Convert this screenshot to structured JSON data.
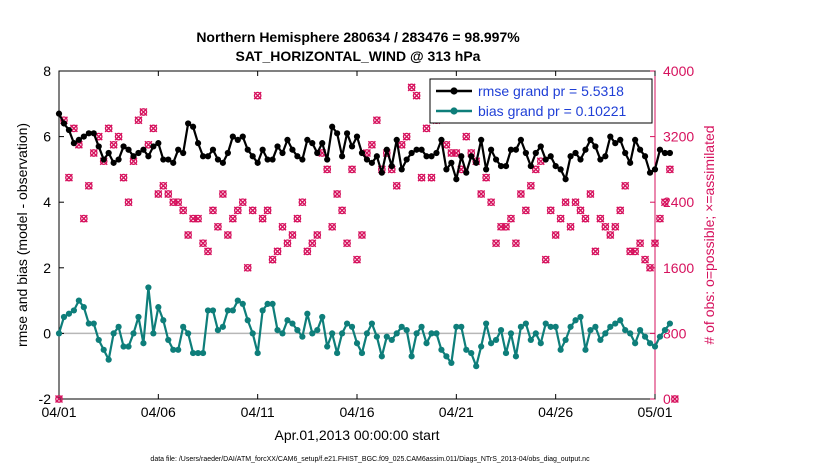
{
  "chart_data": {
    "type": "line",
    "title_line1": "Northern Hemisphere 280634 / 283476 = 98.997%",
    "title_line2": "SAT_HORIZONTAL_WIND @ 313 hPa",
    "xlabel": "Apr.01,2013 00:00:00 start",
    "ylabel_left": "rmse and bias (model - observation)",
    "ylabel_right": "# of obs: o=possible; ×=assimilated",
    "footnote": "data file: /Users/raeder/DAI/ATM_forcXX/CAM6_setup/f.e21.FHIST_BGC.f09_025.CAM6assim.011/Diags_NTrS_2013-04/obs_diag_output.nc",
    "xlim": [
      0,
      30
    ],
    "ylim_left": [
      -2,
      8
    ],
    "ylim_right": [
      0,
      4000
    ],
    "xticks": [
      {
        "value": 0,
        "label": "04/01"
      },
      {
        "value": 5,
        "label": "04/06"
      },
      {
        "value": 10,
        "label": "04/11"
      },
      {
        "value": 15,
        "label": "04/16"
      },
      {
        "value": 20,
        "label": "04/21"
      },
      {
        "value": 25,
        "label": "04/26"
      },
      {
        "value": 30,
        "label": "05/01"
      }
    ],
    "yticks_left": [
      {
        "value": -2,
        "label": "-2"
      },
      {
        "value": 0,
        "label": "0"
      },
      {
        "value": 2,
        "label": "2"
      },
      {
        "value": 4,
        "label": "4"
      },
      {
        "value": 6,
        "label": "6"
      },
      {
        "value": 8,
        "label": "8"
      }
    ],
    "yticks_right": [
      {
        "value": 0,
        "label": "0"
      },
      {
        "value": 800,
        "label": "800"
      },
      {
        "value": 1600,
        "label": "1600"
      },
      {
        "value": 2400,
        "label": "2400"
      },
      {
        "value": 3200,
        "label": "3200"
      },
      {
        "value": 4000,
        "label": "4000"
      }
    ],
    "x_step_days": 0.25,
    "series": [
      {
        "name": "rmse grand pr = 5.5318",
        "axis": "left",
        "color": "#000000",
        "values": [
          6.7,
          6.4,
          6.2,
          5.8,
          5.9,
          6.0,
          6.1,
          6.1,
          5.7,
          5.3,
          5.5,
          5.2,
          5.3,
          5.7,
          5.6,
          5.4,
          5.5,
          5.6,
          5.4,
          5.7,
          5.8,
          5.3,
          5.3,
          5.2,
          5.6,
          5.5,
          6.4,
          6.3,
          5.8,
          5.4,
          5.4,
          5.6,
          5.3,
          5.2,
          5.5,
          6.0,
          5.9,
          6.0,
          5.6,
          5.4,
          5.2,
          5.6,
          5.3,
          5.3,
          5.7,
          5.5,
          5.9,
          5.6,
          5.4,
          5.3,
          5.9,
          5.8,
          5.5,
          5.8,
          5.3,
          6.3,
          6.1,
          5.4,
          6.1,
          5.7,
          6.0,
          5.5,
          5.3,
          5.2,
          5.4,
          4.9,
          5.6,
          5.1,
          5.9,
          5.0,
          5.3,
          5.5,
          5.6,
          5.6,
          5.4,
          5.4,
          5.5,
          5.9,
          5.0,
          5.2,
          4.7,
          5.4,
          4.9,
          5.4,
          5.2,
          5.9,
          5.0,
          5.6,
          5.3,
          5.1,
          5.1,
          5.6,
          5.6,
          5.9,
          5.5,
          5.1,
          5.5,
          5.7,
          5.3,
          5.4,
          5.1,
          5.0,
          4.7,
          5.4,
          5.5,
          5.3,
          5.6,
          5.9,
          5.7,
          5.3,
          5.4,
          6.0,
          5.8,
          5.9,
          5.5,
          5.2,
          5.9,
          5.6,
          5.4,
          4.9,
          5.0,
          5.6,
          5.5,
          5.5
        ],
        "legend_label_color": "#1f3fd6"
      },
      {
        "name": "bias grand pr = 0.10221",
        "axis": "left",
        "color": "#0e7e7a",
        "values": [
          0.0,
          0.5,
          0.6,
          0.7,
          1.0,
          0.8,
          0.3,
          0.3,
          -0.2,
          -0.5,
          -0.8,
          0.0,
          0.2,
          -0.4,
          -0.4,
          0.0,
          0.5,
          -0.3,
          1.4,
          0.0,
          0.8,
          0.4,
          -0.2,
          -0.5,
          -0.5,
          0.2,
          0.0,
          -0.6,
          -0.6,
          -0.6,
          0.7,
          0.7,
          0.1,
          0.2,
          0.7,
          0.7,
          1.0,
          0.9,
          0.4,
          0.0,
          -0.6,
          0.7,
          0.9,
          0.9,
          0.1,
          0.0,
          0.4,
          0.3,
          0.1,
          -0.1,
          0.6,
          0.0,
          0.1,
          0.5,
          -0.4,
          0.0,
          -0.6,
          0.0,
          0.3,
          0.2,
          -0.3,
          -0.6,
          0.0,
          0.3,
          -0.1,
          -0.7,
          -0.1,
          -0.2,
          0.0,
          0.2,
          0.1,
          -0.7,
          0.0,
          0.2,
          -0.3,
          0.0,
          0.0,
          -0.5,
          -0.7,
          -0.9,
          0.2,
          0.2,
          -0.5,
          -0.6,
          -1.0,
          -0.4,
          0.3,
          -0.3,
          -0.2,
          0.1,
          -0.6,
          0.0,
          -0.7,
          0.2,
          0.3,
          -0.2,
          0.0,
          -0.3,
          0.3,
          0.2,
          0.2,
          -0.5,
          -0.2,
          0.2,
          0.4,
          0.5,
          -0.5,
          0.1,
          0.2,
          -0.2,
          0.0,
          0.2,
          0.3,
          0.4,
          0.1,
          0.0,
          -0.3,
          0.1,
          -0.1,
          -0.3,
          -0.4,
          -0.1,
          0.1,
          0.3
        ]
      },
      {
        "name": "obs possible",
        "axis": "right",
        "color": "#d6115d",
        "marker": "o",
        "values": [
          0,
          3400,
          2700,
          3300,
          3100,
          2200,
          2600,
          3000,
          3200,
          2900,
          3300,
          3100,
          3200,
          2700,
          2400,
          2900,
          3400,
          3500,
          3100,
          3300,
          2500,
          2600,
          2500,
          2400,
          2400,
          2300,
          2000,
          2200,
          2200,
          1900,
          1800,
          2300,
          2100,
          2500,
          2000,
          2200,
          2300,
          2400,
          1600,
          2300,
          3700,
          2200,
          2300,
          1700,
          1800,
          2100,
          1900,
          2000,
          2200,
          2400,
          1800,
          1900,
          2000,
          3000,
          2800,
          2100,
          2500,
          2300,
          1900,
          2800,
          1700,
          2000,
          3000,
          3100,
          3400,
          2800,
          3000,
          2800,
          2600,
          3100,
          3200,
          3800,
          3700,
          2700,
          3300,
          2700,
          3400,
          3500,
          3100,
          3000,
          3000,
          2800,
          3200,
          3000,
          2900,
          2500,
          2700,
          2400,
          1900,
          2100,
          2100,
          2200,
          1900,
          2500,
          2300,
          2600,
          2800,
          2900,
          1700,
          2300,
          2000,
          2200,
          2400,
          2100,
          2400,
          2300,
          2200,
          2500,
          1800,
          2200,
          2100,
          2000,
          2100,
          2300,
          2600,
          1800,
          1800,
          1900,
          1700,
          1600,
          1900,
          2200,
          2400,
          2800,
          0
        ],
        "notes": "assimilated (×) counts overlap possible counts at this scale"
      }
    ]
  }
}
